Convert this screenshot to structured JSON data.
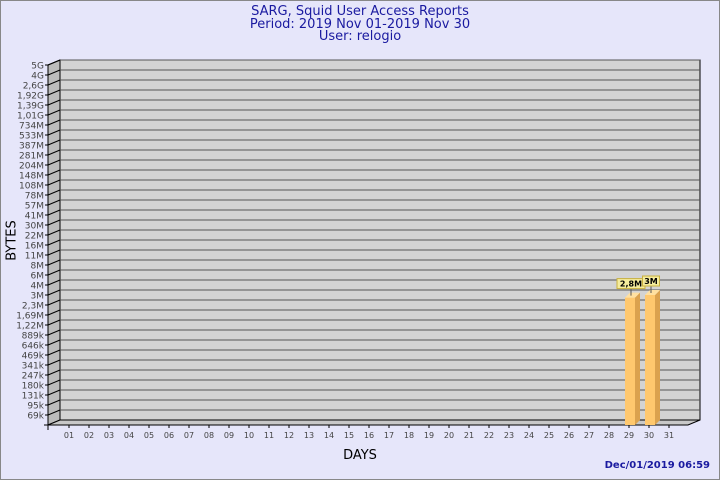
{
  "chart_data": {
    "type": "bar",
    "title": [
      "SARG, Squid User Access Reports",
      "Period: 2019 Nov 01-2019 Nov 30",
      "User: relogio"
    ],
    "xlabel": "DAYS",
    "ylabel": "BYTES",
    "yscale": "log",
    "y_tick_labels": [
      "5G",
      "4G",
      "2,6G",
      "1,92G",
      "1,39G",
      "1,01G",
      "734M",
      "533M",
      "387M",
      "281M",
      "204M",
      "148M",
      "108M",
      "78M",
      "57M",
      "41M",
      "30M",
      "22M",
      "16M",
      "11M",
      "8M",
      "6M",
      "4M",
      "3M",
      "2,3M",
      "1,69M",
      "1,22M",
      "889k",
      "646k",
      "469k",
      "341k",
      "247k",
      "180k",
      "131k",
      "95k",
      "69k"
    ],
    "categories": [
      "01",
      "02",
      "03",
      "04",
      "05",
      "06",
      "07",
      "08",
      "09",
      "10",
      "11",
      "12",
      "13",
      "14",
      "15",
      "16",
      "17",
      "18",
      "19",
      "20",
      "21",
      "22",
      "23",
      "24",
      "25",
      "26",
      "27",
      "28",
      "29",
      "30",
      "31"
    ],
    "bars": [
      {
        "day": "29",
        "value_label": "2,8M"
      },
      {
        "day": "30",
        "value_label": "3M"
      }
    ],
    "grid": true,
    "bar_color": "#ffc86e",
    "wall_color": "#d3d3d3"
  },
  "footer": {
    "timestamp": "Dec/01/2019 06:59"
  }
}
